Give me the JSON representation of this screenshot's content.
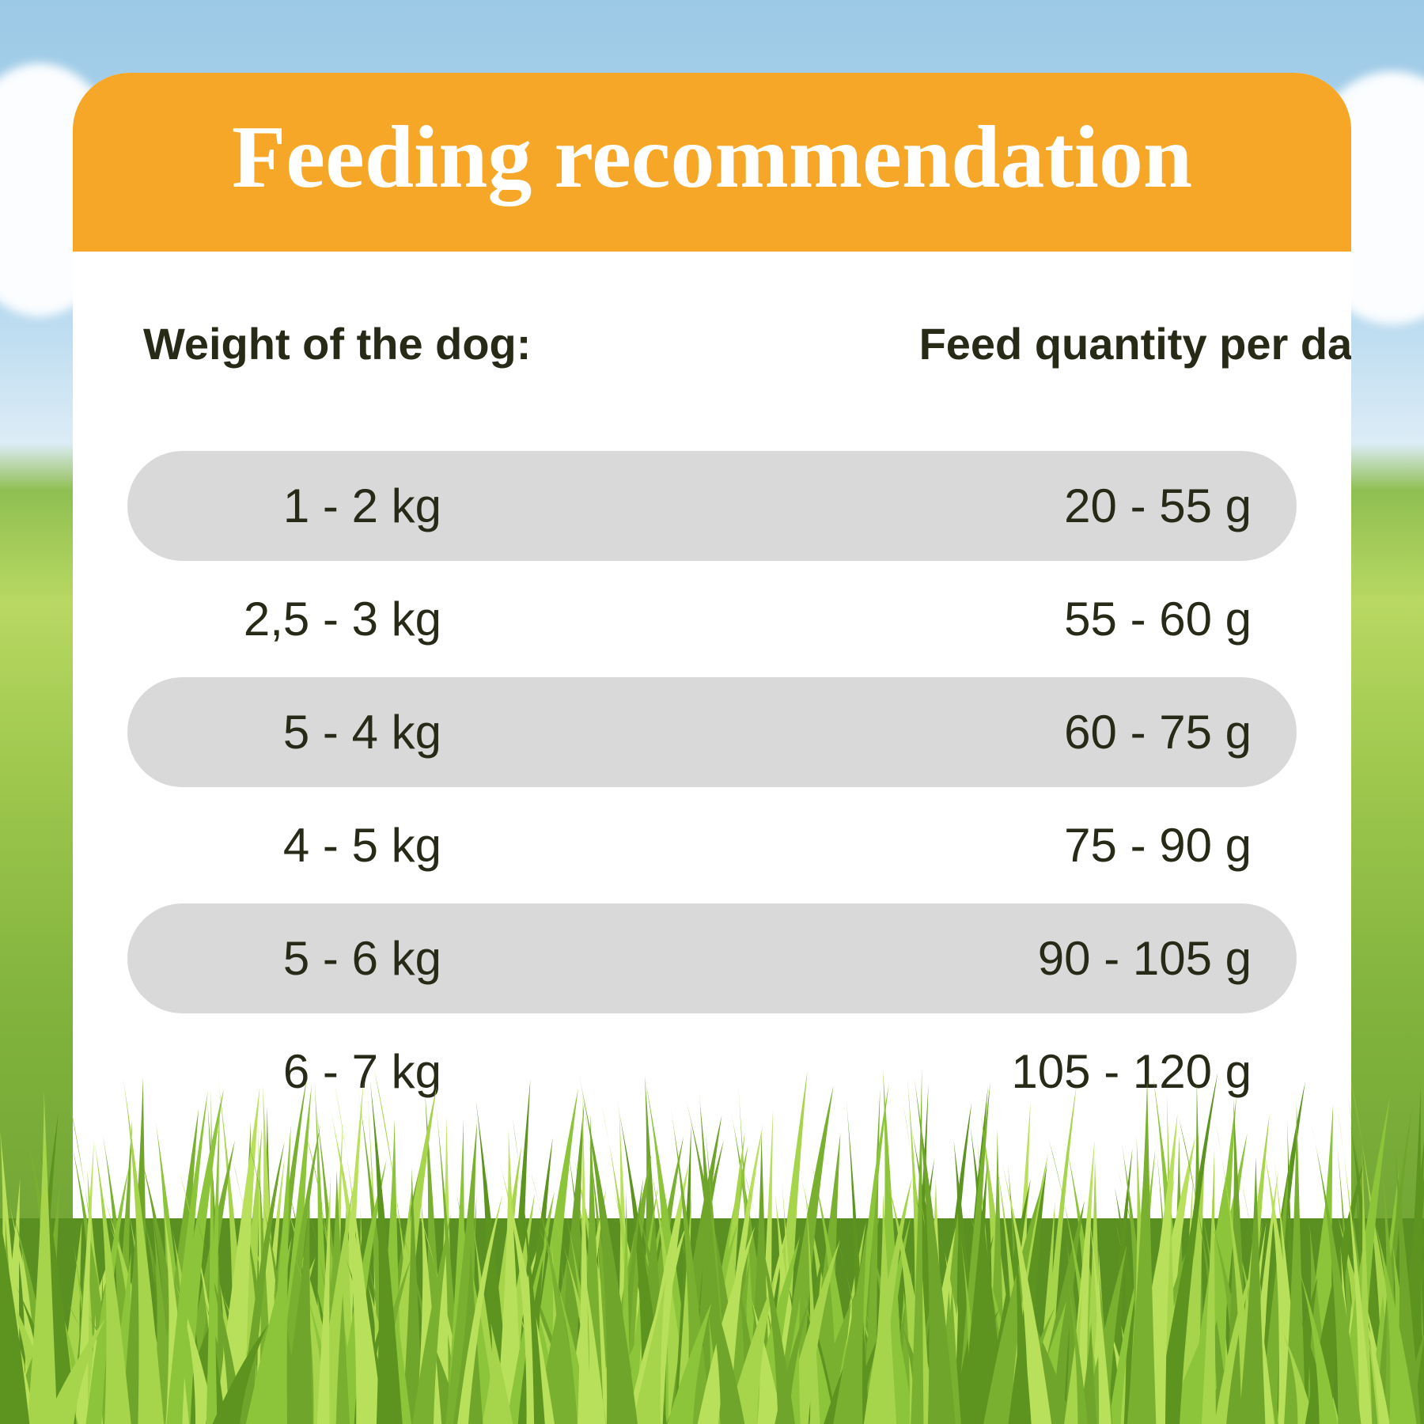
{
  "header": {
    "title": "Feeding recommendation"
  },
  "table": {
    "columns": [
      "Weight of the dog:",
      "Feed quantity per day:"
    ],
    "rows": [
      [
        "1 - 2 kg",
        "20 - 55 g"
      ],
      [
        "2,5 - 3 kg",
        "55 - 60 g"
      ],
      [
        "5 - 4 kg",
        "60 - 75 g"
      ],
      [
        "4 - 5 kg",
        "75 - 90 g"
      ],
      [
        "5 - 6 kg",
        "90 - 105 g"
      ],
      [
        "6 - 7 kg",
        "105 - 120 g"
      ]
    ]
  }
}
